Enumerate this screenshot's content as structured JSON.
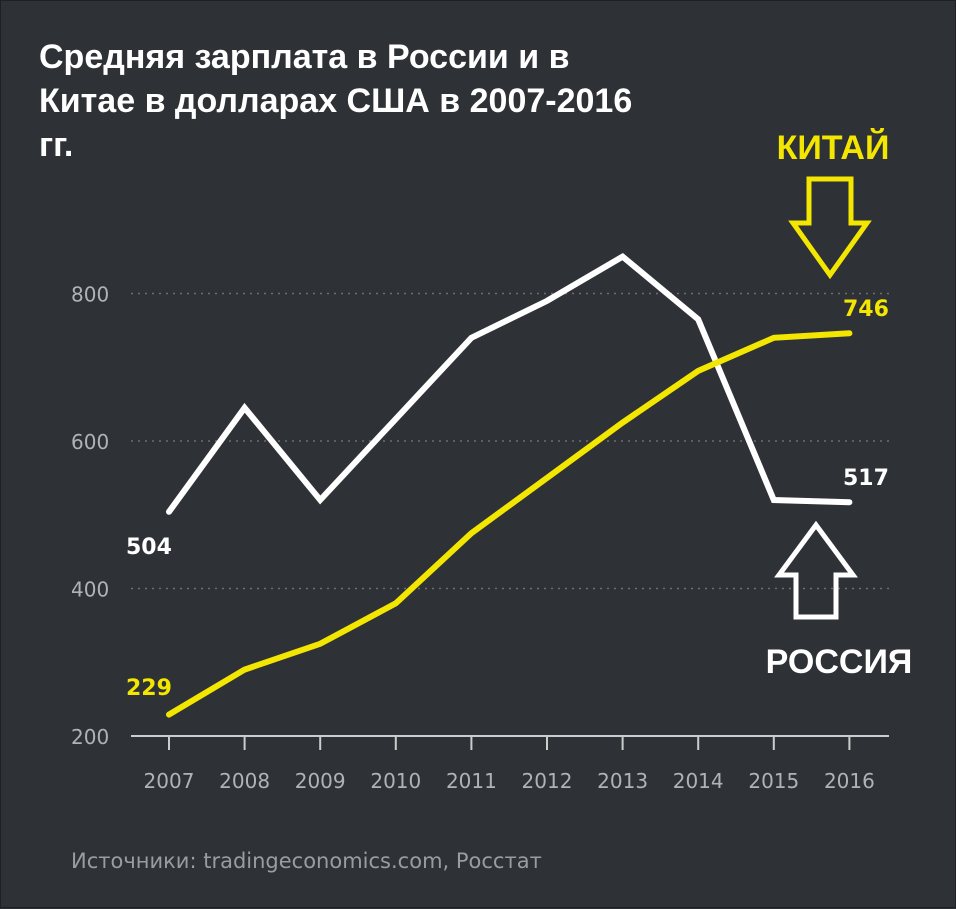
{
  "title": "Средняя зарплата в России и в Китае в долларах США в 2007-2016 гг.",
  "source": "Источники: tradingeconomics.com, Росстат",
  "chart_data": {
    "type": "line",
    "x": [
      "2007",
      "2008",
      "2009",
      "2010",
      "2011",
      "2012",
      "2013",
      "2014",
      "2015",
      "2016"
    ],
    "y_ticks": [
      "800",
      "600",
      "400",
      "200"
    ],
    "ylim": [
      200,
      850
    ],
    "grid": "dotted horizontal",
    "series": [
      {
        "name": "РОССИЯ",
        "color": "#ffffff",
        "values": [
          504,
          645,
          520,
          630,
          740,
          790,
          850,
          765,
          520,
          517
        ],
        "start_label": "504",
        "end_label": "517"
      },
      {
        "name": "КИТАЙ",
        "color": "#f3e600",
        "values": [
          229,
          290,
          325,
          380,
          475,
          550,
          625,
          695,
          740,
          746
        ],
        "start_label": "229",
        "end_label": "746"
      }
    ],
    "colors": {
      "background": "#2e3136",
      "axis": "#cccccc",
      "tick_text": "#b0b2b5",
      "grid": "#6b6e73"
    }
  }
}
